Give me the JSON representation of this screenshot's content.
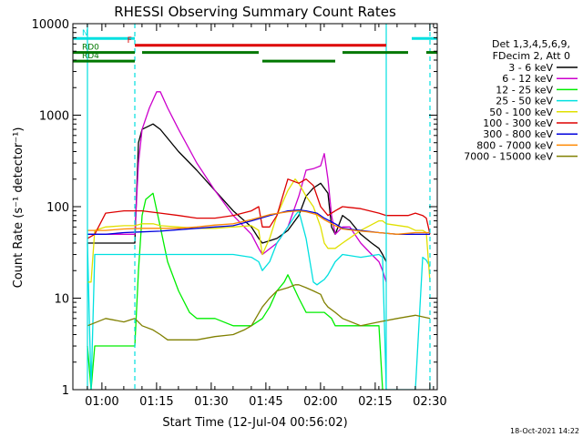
{
  "chart_data": {
    "type": "line",
    "title": "RHESSI Observing Summary Count Rates",
    "xlabel": "Start Time (12-Jul-04 00:56:02)",
    "ylabel": "Count Rate (s⁻¹ detector⁻¹)",
    "yscale": "log",
    "ylim": [
      1,
      10000
    ],
    "xlim": [
      -4,
      96
    ],
    "x_units": "minutes after 00:56:02 (axis prints clock time)",
    "x_ticks": [
      {
        "x": 3.97,
        "label": "01:00"
      },
      {
        "x": 18.97,
        "label": "01:15"
      },
      {
        "x": 33.97,
        "label": "01:30"
      },
      {
        "x": 48.97,
        "label": "01:45"
      },
      {
        "x": 63.97,
        "label": "02:00"
      },
      {
        "x": 78.97,
        "label": "02:15"
      },
      {
        "x": 93.97,
        "label": "02:30"
      }
    ],
    "y_ticks": [
      {
        "y": 1,
        "label": "1"
      },
      {
        "y": 10,
        "label": "10"
      },
      {
        "y": 100,
        "label": "100"
      },
      {
        "y": 1000,
        "label": "1000"
      },
      {
        "y": 10000,
        "label": "10000"
      }
    ],
    "legend_header": [
      "Det 1,3,4,5,6,9,",
      "FDecim 2, Att 0"
    ],
    "legend_position": "right",
    "series": [
      {
        "name": "3 - 6 keV",
        "color": "#000000",
        "x": [
          0,
          13,
          14,
          15,
          18,
          20,
          25,
          30,
          35,
          40,
          45,
          47,
          48,
          52,
          55,
          58,
          60,
          62,
          64,
          66,
          67,
          68,
          70,
          72,
          75,
          78,
          80,
          81,
          82
        ],
        "y": [
          40,
          40,
          500,
          700,
          800,
          700,
          400,
          250,
          150,
          90,
          60,
          45,
          40,
          45,
          55,
          80,
          130,
          160,
          180,
          140,
          60,
          50,
          80,
          70,
          50,
          40,
          35,
          30,
          25
        ]
      },
      {
        "name": "6 - 12 keV",
        "color": "#cc00cc",
        "x": [
          0,
          13,
          14,
          15,
          17,
          19,
          20,
          22,
          25,
          30,
          35,
          40,
          45,
          47,
          48,
          52,
          55,
          58,
          60,
          62,
          64,
          65,
          66,
          67,
          68,
          70,
          72,
          75,
          78,
          80,
          81,
          82
        ],
        "y": [
          50,
          50,
          300,
          700,
          1200,
          1800,
          1800,
          1200,
          700,
          300,
          150,
          80,
          50,
          35,
          30,
          40,
          60,
          130,
          250,
          260,
          280,
          380,
          200,
          80,
          50,
          60,
          60,
          40,
          30,
          25,
          20,
          15
        ]
      },
      {
        "name": "12 - 25 keV",
        "color": "#00ee00",
        "x": [
          0,
          1,
          2,
          5,
          10,
          13,
          14,
          15,
          16,
          18,
          20,
          22,
          25,
          28,
          30,
          35,
          40,
          45,
          48,
          50,
          52,
          54,
          55,
          58,
          60,
          63,
          65,
          67,
          68,
          70,
          72,
          75,
          78,
          80,
          81
        ],
        "y": [
          3,
          1,
          3,
          3,
          3,
          3,
          20,
          80,
          120,
          140,
          60,
          25,
          12,
          7,
          6,
          6,
          5,
          5,
          6,
          8,
          12,
          15,
          18,
          10,
          7,
          7,
          7,
          6,
          5,
          5,
          5,
          5,
          5,
          5,
          1
        ]
      },
      {
        "name": "25 - 50 keV",
        "color": "#00e0e0",
        "x": [
          0,
          1,
          2,
          5,
          10,
          13,
          15,
          20,
          25,
          30,
          35,
          40,
          45,
          47,
          48,
          50,
          52,
          55,
          57,
          58,
          60,
          62,
          63,
          64,
          65,
          66,
          68,
          70,
          75,
          80,
          81,
          82,
          90,
          92,
          93,
          94
        ],
        "y": [
          40,
          1,
          30,
          30,
          30,
          30,
          30,
          30,
          30,
          30,
          30,
          30,
          28,
          25,
          20,
          25,
          40,
          60,
          80,
          90,
          45,
          15,
          14,
          15,
          16,
          18,
          25,
          30,
          28,
          30,
          28,
          1,
          1,
          28,
          26,
          22
        ]
      },
      {
        "name": "50 - 100 keV",
        "color": "#e0e000",
        "x": [
          0,
          1,
          2,
          5,
          10,
          13,
          15,
          18,
          20,
          25,
          30,
          35,
          40,
          45,
          47,
          48,
          50,
          52,
          55,
          57,
          58,
          60,
          62,
          64,
          65,
          66,
          68,
          70,
          75,
          80,
          81,
          82,
          88,
          90,
          92,
          93,
          94
        ],
        "y": [
          15,
          15,
          55,
          60,
          62,
          62,
          65,
          65,
          62,
          60,
          58,
          58,
          60,
          62,
          55,
          30,
          45,
          80,
          150,
          200,
          180,
          130,
          100,
          60,
          40,
          35,
          35,
          40,
          55,
          70,
          70,
          65,
          60,
          55,
          55,
          52,
          15
        ]
      },
      {
        "name": "100 - 300 keV",
        "color": "#dd0000",
        "x": [
          0,
          2,
          5,
          10,
          13,
          15,
          20,
          25,
          30,
          35,
          40,
          45,
          47,
          48,
          50,
          52,
          55,
          58,
          60,
          62,
          64,
          66,
          68,
          70,
          75,
          80,
          82,
          88,
          90,
          92,
          93,
          94
        ],
        "y": [
          45,
          50,
          85,
          90,
          90,
          90,
          85,
          80,
          75,
          75,
          80,
          90,
          100,
          60,
          60,
          80,
          200,
          180,
          200,
          170,
          100,
          80,
          90,
          100,
          95,
          85,
          80,
          80,
          85,
          80,
          75,
          50
        ]
      },
      {
        "name": "300 - 800 keV",
        "color": "#0000dd",
        "x": [
          0,
          5,
          10,
          15,
          20,
          25,
          30,
          35,
          40,
          45,
          50,
          55,
          58,
          60,
          63,
          65,
          68,
          70,
          75,
          80,
          85,
          90,
          94
        ],
        "y": [
          50,
          50,
          52,
          53,
          54,
          56,
          58,
          60,
          62,
          70,
          80,
          90,
          92,
          90,
          85,
          75,
          65,
          58,
          55,
          52,
          50,
          50,
          50
        ]
      },
      {
        "name": "800 - 7000 keV",
        "color": "#ff8800",
        "x": [
          0,
          5,
          10,
          15,
          20,
          25,
          30,
          35,
          40,
          45,
          50,
          55,
          58,
          60,
          63,
          65,
          68,
          70,
          75,
          80,
          85,
          90,
          94
        ],
        "y": [
          55,
          55,
          57,
          58,
          58,
          58,
          60,
          63,
          65,
          72,
          82,
          88,
          90,
          88,
          82,
          72,
          62,
          57,
          54,
          52,
          50,
          52,
          52
        ]
      },
      {
        "name": "7000 - 15000 keV",
        "color": "#808000",
        "x": [
          0,
          5,
          10,
          13,
          15,
          18,
          20,
          22,
          25,
          30,
          35,
          40,
          43,
          45,
          48,
          50,
          52,
          55,
          57,
          58,
          60,
          62,
          64,
          65,
          66,
          68,
          70,
          75,
          80,
          85,
          90,
          94
        ],
        "y": [
          5,
          6,
          5.5,
          6,
          5,
          4.5,
          4,
          3.5,
          3.5,
          3.5,
          3.8,
          4,
          4.5,
          5,
          8,
          10,
          12,
          13,
          14,
          14,
          13,
          12,
          11,
          9,
          8,
          7,
          6,
          5,
          5.5,
          6,
          6.5,
          6
        ]
      }
    ],
    "annotations": [
      {
        "label": "N",
        "color": "#00e0e0",
        "segments": [
          [
            -4,
            13
          ],
          [
            89,
            96
          ]
        ],
        "y": 6900
      },
      {
        "label": "F",
        "color": "#dd0000",
        "segments": [
          [
            13,
            82
          ]
        ],
        "y": 5800
      },
      {
        "label": "RD0",
        "color": "#007700",
        "segments": [
          [
            -4,
            13
          ],
          [
            15,
            47
          ],
          [
            70,
            88
          ],
          [
            93,
            96
          ]
        ],
        "y": 4850
      },
      {
        "label": "RD4",
        "color": "#007700",
        "segments": [
          [
            -4,
            13
          ],
          [
            48,
            68
          ]
        ],
        "y": 3900
      }
    ],
    "vertical_lines": [
      {
        "x": 0,
        "color": "#00e0e0",
        "style": "solid"
      },
      {
        "x": 13,
        "color": "#00e0e0",
        "style": "dashed"
      },
      {
        "x": 82,
        "color": "#00e0e0",
        "style": "solid"
      },
      {
        "x": 94,
        "color": "#00e0e0",
        "style": "dashed"
      }
    ]
  },
  "footer": {
    "timestamp": "18-Oct-2021 14:22"
  }
}
